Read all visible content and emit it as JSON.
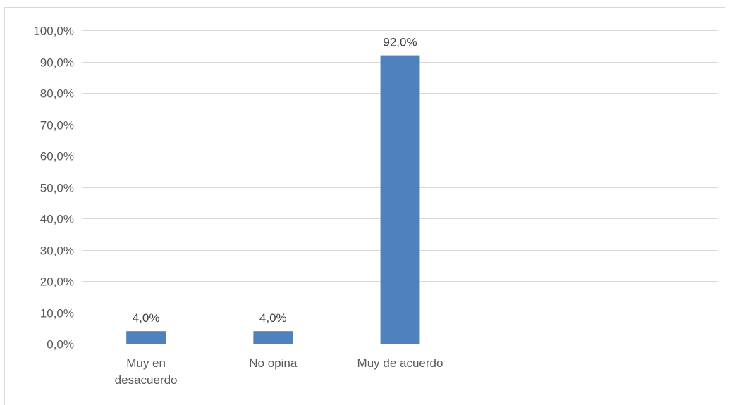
{
  "chart_data": {
    "type": "bar",
    "categories": [
      [
        "Muy en",
        "desacuerdo"
      ],
      [
        "No opina"
      ],
      [
        "Muy de acuerdo"
      ]
    ],
    "values": [
      4.0,
      4.0,
      92.0
    ],
    "data_labels": [
      "4,0%",
      "4,0%",
      "92,0%"
    ],
    "title": "",
    "xlabel": "",
    "ylabel": "",
    "ylim": [
      0,
      100
    ],
    "y_ticks": [
      0,
      10,
      20,
      30,
      40,
      50,
      60,
      70,
      80,
      90,
      100
    ],
    "y_tick_labels": [
      "0,0%",
      "10,0%",
      "20,0%",
      "30,0%",
      "40,0%",
      "50,0%",
      "60,0%",
      "70,0%",
      "80,0%",
      "90,0%",
      "100,0%"
    ],
    "category_slots": 5,
    "grid": true,
    "legend": "none",
    "bar_color": "#4f81bd",
    "grid_color": "#d9d9d9",
    "axis_color": "#bfbfbf"
  }
}
